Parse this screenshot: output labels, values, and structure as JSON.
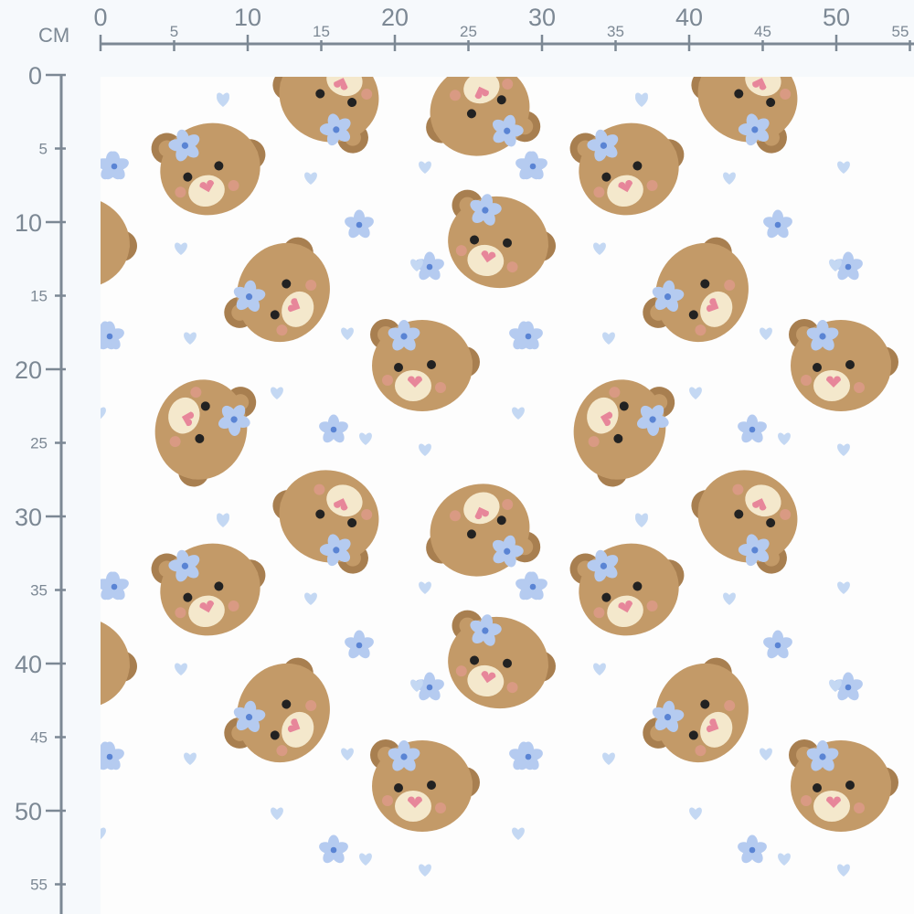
{
  "ruler": {
    "unit": "CM",
    "horizontal_labels": [
      "0",
      "5",
      "10",
      "15",
      "20",
      "25",
      "30",
      "35",
      "40",
      "45",
      "50",
      "55"
    ],
    "vertical_labels": [
      "0",
      "5",
      "10",
      "15",
      "20",
      "25",
      "30",
      "35",
      "40",
      "45",
      "50",
      "55"
    ]
  },
  "colors": {
    "ruler": "#7c8894",
    "fabric": "#fdfdfd",
    "bear": "#c39a68",
    "bear_dark": "#a87f50",
    "muzzle": "#f4e8cc",
    "nose": "#e7869a",
    "cheek": "#e39a8e",
    "flower": "#b5cbf0",
    "flower_center": "#5a84d4",
    "heart": "#c4d8f3"
  },
  "pattern": {
    "motif": "teddy bear heads with blue flowers and hearts"
  }
}
